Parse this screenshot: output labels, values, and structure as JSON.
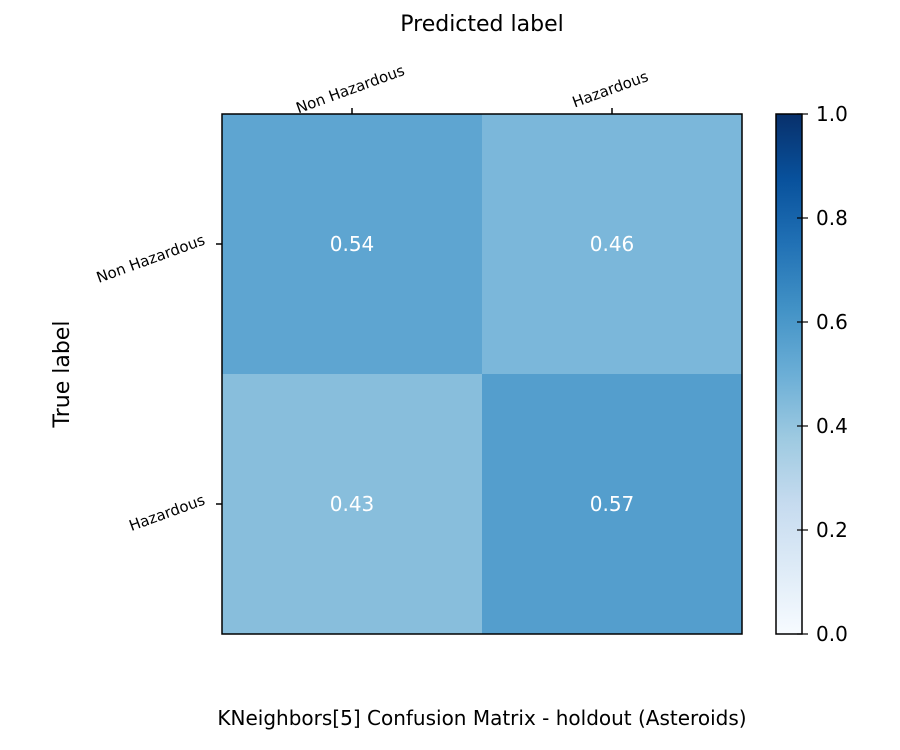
{
  "chart_data": {
    "type": "heatmap",
    "title": "KNeighbors[5] Confusion Matrix - holdout (Asteroids)",
    "xlabel": "Predicted label",
    "ylabel": "True label",
    "x_categories": [
      "Non Hazardous",
      "Hazardous"
    ],
    "y_categories": [
      "Non Hazardous",
      "Hazardous"
    ],
    "values": [
      [
        0.54,
        0.46
      ],
      [
        0.43,
        0.57
      ]
    ],
    "value_labels": [
      [
        "0.54",
        "0.46"
      ],
      [
        "0.43",
        "0.57"
      ]
    ],
    "colormap": "Blues",
    "vmin": 0.0,
    "vmax": 1.0,
    "colorbar_ticks": [
      "0.0",
      "0.2",
      "0.4",
      "0.6",
      "0.8",
      "1.0"
    ],
    "cell_text_color": "#ffffff",
    "grid": false
  }
}
